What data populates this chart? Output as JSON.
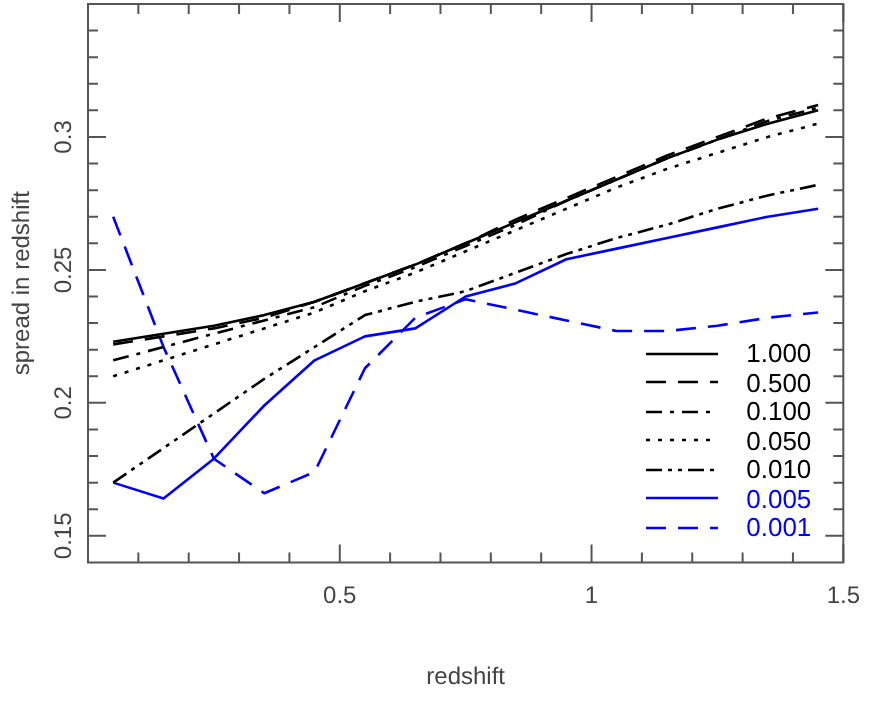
{
  "chart_data": {
    "type": "line",
    "xlabel": "redshift",
    "ylabel": "spread in redshift",
    "xlim": [
      0,
      1.5
    ],
    "ylim": [
      0.14,
      0.35
    ],
    "xticks": [
      {
        "value": 0.1,
        "label": null
      },
      {
        "value": 0.2,
        "label": null
      },
      {
        "value": 0.3,
        "label": null
      },
      {
        "value": 0.4,
        "label": null
      },
      0.5,
      {
        "value": 0.6,
        "label": null
      },
      {
        "value": 0.7,
        "label": null
      },
      {
        "value": 0.8,
        "label": null
      },
      {
        "value": 0.9,
        "label": null
      },
      1,
      {
        "value": 1.1,
        "label": null
      },
      {
        "value": 1.2,
        "label": null
      },
      {
        "value": 1.3,
        "label": null
      },
      {
        "value": 1.4,
        "label": null
      },
      1.5
    ],
    "yticks": [
      0.15,
      {
        "value": 0.16,
        "label": null
      },
      {
        "value": 0.17,
        "label": null
      },
      {
        "value": 0.18,
        "label": null
      },
      {
        "value": 0.19,
        "label": null
      },
      0.2,
      {
        "value": 0.21,
        "label": null
      },
      {
        "value": 0.22,
        "label": null
      },
      {
        "value": 0.23,
        "label": null
      },
      {
        "value": 0.24,
        "label": null
      },
      0.25,
      {
        "value": 0.26,
        "label": null
      },
      {
        "value": 0.27,
        "label": null
      },
      {
        "value": 0.28,
        "label": null
      },
      {
        "value": 0.29,
        "label": null
      },
      0.3,
      {
        "value": 0.31,
        "label": null
      },
      {
        "value": 0.32,
        "label": null
      },
      {
        "value": 0.33,
        "label": null
      },
      {
        "value": 0.34,
        "label": null
      }
    ],
    "grid": false,
    "legend": "bottom right",
    "marker": "none",
    "x": [
      0.05,
      0.15,
      0.25,
      0.35,
      0.45,
      0.55,
      0.65,
      0.75,
      0.85,
      0.95,
      1.05,
      1.15,
      1.25,
      1.35,
      1.45
    ],
    "series": [
      {
        "name": "1.000",
        "color": "#000000",
        "line_style": "solid",
        "values": [
          0.223,
          0.226,
          0.229,
          0.233,
          0.238,
          0.245,
          0.252,
          0.26,
          0.268,
          0.276,
          0.284,
          0.292,
          0.299,
          0.305,
          0.31
        ]
      },
      {
        "name": "0.500",
        "color": "#000000",
        "line_style": "dashed",
        "values": [
          0.222,
          0.225,
          0.228,
          0.232,
          0.238,
          0.245,
          0.252,
          0.26,
          0.269,
          0.277,
          0.285,
          0.293,
          0.3,
          0.307,
          0.312
        ]
      },
      {
        "name": "0.100",
        "color": "#000000",
        "line_style": "dashdot",
        "values": [
          0.216,
          0.221,
          0.226,
          0.231,
          0.236,
          0.244,
          0.251,
          0.259,
          0.267,
          0.276,
          0.284,
          0.292,
          0.299,
          0.306,
          0.311
        ]
      },
      {
        "name": "0.050",
        "color": "#000000",
        "line_style": "dotted",
        "values": [
          0.21,
          0.216,
          0.222,
          0.228,
          0.234,
          0.242,
          0.249,
          0.257,
          0.265,
          0.273,
          0.281,
          0.288,
          0.294,
          0.3,
          0.305
        ]
      },
      {
        "name": "0.010",
        "color": "#000000",
        "line_style": "dashdotdot",
        "values": [
          0.17,
          0.183,
          0.196,
          0.209,
          0.221,
          0.233,
          0.238,
          0.242,
          0.249,
          0.256,
          0.262,
          0.267,
          0.273,
          0.278,
          0.282
        ]
      },
      {
        "name": "0.005",
        "color": "#0000ff",
        "line_style": "solid",
        "values": [
          0.17,
          0.164,
          0.179,
          0.199,
          0.216,
          0.225,
          0.228,
          0.24,
          0.245,
          0.254,
          0.258,
          0.262,
          0.266,
          0.27,
          0.273
        ]
      },
      {
        "name": "0.001",
        "color": "#0000ff",
        "line_style": "dashed",
        "values": [
          0.27,
          0.221,
          0.179,
          0.166,
          0.174,
          0.213,
          0.232,
          0.239,
          0.235,
          0.231,
          0.227,
          0.227,
          0.229,
          0.232,
          0.234
        ]
      }
    ]
  }
}
